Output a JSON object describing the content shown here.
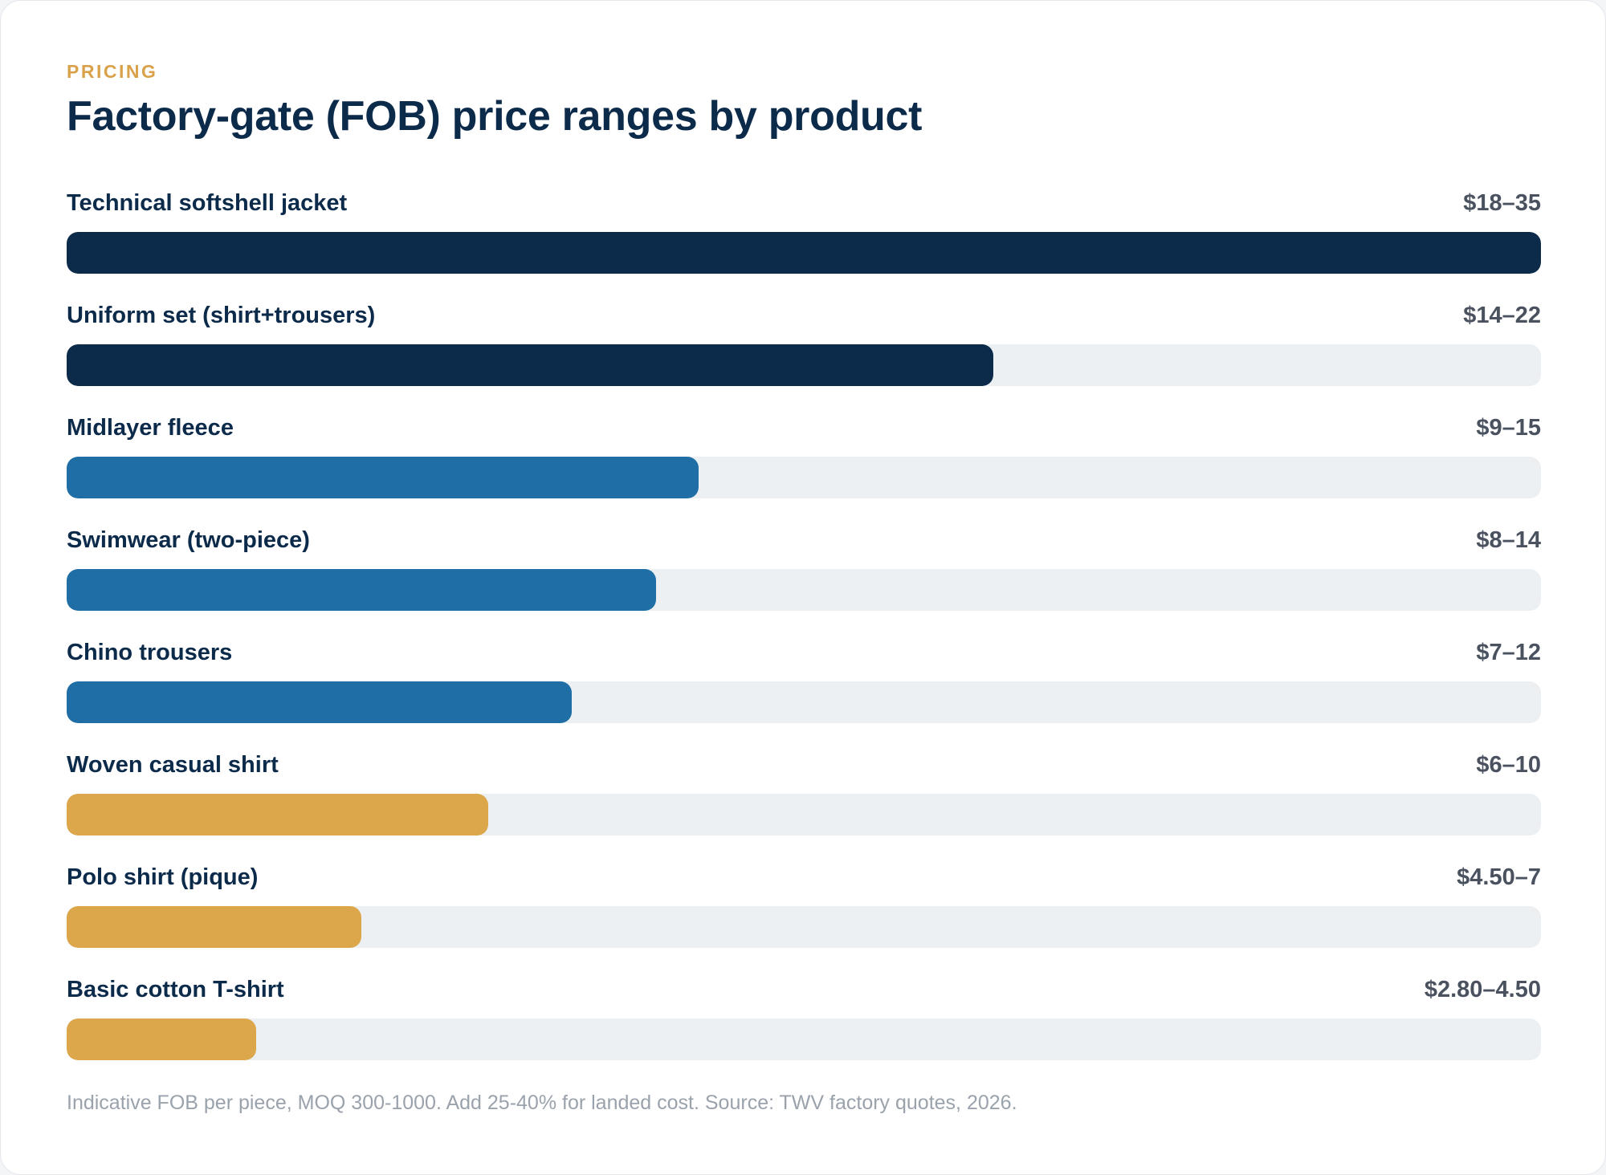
{
  "header": {
    "eyebrow": "PRICING",
    "title": "Factory-gate (FOB) price ranges by product"
  },
  "footnote": "Indicative FOB per piece, MOQ 300-1000. Add 25-40% for landed cost. Source: TWV factory quotes, 2026.",
  "colors": {
    "navy": "#0c2a4a",
    "blue": "#1f6fa6",
    "gold": "#dca64b",
    "track": "#edf0f3"
  },
  "chart_data": {
    "type": "bar",
    "orientation": "horizontal",
    "scale_max": 35,
    "categories": [
      "Technical softshell jacket",
      "Uniform set (shirt+trousers)",
      "Midlayer fleece",
      "Swimwear (two-piece)",
      "Chino trousers",
      "Woven casual shirt",
      "Polo shirt (pique)",
      "Basic cotton T-shirt"
    ],
    "value_labels": [
      "$18–35",
      "$14–22",
      "$9–15",
      "$8–14",
      "$7–12",
      "$6–10",
      "$4.50–7",
      "$2.80–4.50"
    ],
    "low": [
      18,
      14,
      9,
      8,
      7,
      6,
      4.5,
      2.8
    ],
    "high": [
      35,
      22,
      15,
      14,
      12,
      10,
      7,
      4.5
    ],
    "bar_colors": [
      "navy",
      "navy",
      "blue",
      "blue",
      "blue",
      "gold",
      "gold",
      "gold"
    ]
  }
}
